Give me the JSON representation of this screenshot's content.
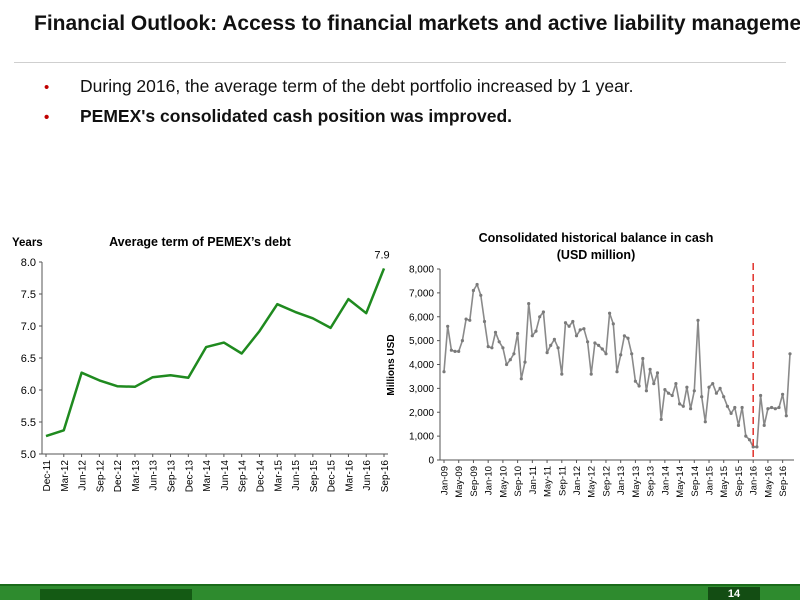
{
  "slide": {
    "title": "Financial Outlook: Access to financial markets and active liability management",
    "bullets": [
      {
        "text": "During 2016, the average term of the debt portfolio increased by 1 year.",
        "bold": false
      },
      {
        "text": "PEMEX's consolidated cash position was improved.",
        "bold": true
      }
    ],
    "page_number": "14"
  },
  "colors": {
    "accent_red": "#c00000",
    "line_green": "#1f8a1f",
    "cash_gray": "#8a8a8a",
    "marker_dashed_red": "#e0302a",
    "footer_green": "#2e8b2e"
  },
  "chart_data": [
    {
      "type": "line",
      "title": "Average term of PEMEX’s debt",
      "ylabel": "Years",
      "ylim": [
        5.0,
        8.0
      ],
      "yticks": [
        "5.0",
        "5.5",
        "6.0",
        "6.5",
        "7.0",
        "7.5",
        "8.0"
      ],
      "categories": [
        "Dec-11",
        "Mar-12",
        "Jun-12",
        "Sep-12",
        "Dec-12",
        "Mar-13",
        "Jun-13",
        "Sep-13",
        "Dec-13",
        "Mar-14",
        "Jun-14",
        "Sep-14",
        "Dec-14",
        "Mar-15",
        "Jun-15",
        "Sep-15",
        "Dec-15",
        "Mar-16",
        "Jun-16",
        "Sep-16"
      ],
      "values": [
        5.28,
        5.37,
        6.27,
        6.15,
        6.06,
        6.05,
        6.2,
        6.23,
        6.19,
        6.67,
        6.74,
        6.57,
        6.92,
        7.34,
        7.22,
        7.12,
        6.97,
        7.42,
        7.2,
        7.9
      ],
      "data_labels": [
        {
          "index": 19,
          "text": "7.9"
        }
      ],
      "grid": false
    },
    {
      "type": "line",
      "title": "Consolidated historical balance in cash",
      "subtitle": "(USD million)",
      "ylabel": "Millions USD",
      "ylim": [
        0,
        8000
      ],
      "yticks": [
        "0",
        "1,000",
        "2,000",
        "3,000",
        "4,000",
        "5,000",
        "6,000",
        "7,000",
        "8,000"
      ],
      "x_start": "Jan-09",
      "x_end": "Sep-16",
      "xticks": [
        "Jan-09",
        "May-09",
        "Sep-09",
        "Jan-10",
        "May-10",
        "Sep-10",
        "Jan-11",
        "May-11",
        "Sep-11",
        "Jan-12",
        "May-12",
        "Sep-12",
        "Jan-13",
        "May-13",
        "Sep-13",
        "Jan-14",
        "May-14",
        "Sep-14",
        "Jan-15",
        "May-15",
        "Sep-15",
        "Jan-16",
        "May-16",
        "Sep-16"
      ],
      "values": [
        3700,
        5600,
        4600,
        4550,
        4550,
        5000,
        5900,
        5850,
        7100,
        7350,
        6900,
        5800,
        4750,
        4700,
        5350,
        4950,
        4700,
        4000,
        4200,
        4450,
        5300,
        3400,
        4100,
        6550,
        5200,
        5400,
        6000,
        6200,
        4500,
        4800,
        5050,
        4700,
        3600,
        5750,
        5600,
        5800,
        5200,
        5450,
        5500,
        4950,
        3600,
        4900,
        4800,
        4650,
        4450,
        6150,
        5700,
        3700,
        4400,
        5200,
        5100,
        4450,
        3300,
        3100,
        4250,
        2900,
        3800,
        3200,
        3650,
        1700,
        2950,
        2800,
        2700,
        3200,
        2350,
        2250,
        3050,
        2150,
        2900,
        5850,
        2650,
        1600,
        3050,
        3200,
        2800,
        3000,
        2650,
        2250,
        1950,
        2200,
        1450,
        2200,
        1000,
        850,
        550,
        550,
        2700,
        1450,
        2150,
        2200,
        2150,
        2200,
        2750,
        1850,
        4450
      ],
      "marker": {
        "x": "Jan-16",
        "style": "dashed"
      },
      "grid": false
    }
  ]
}
